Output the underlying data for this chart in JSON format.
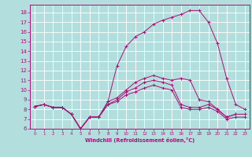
{
  "xlabel": "Windchill (Refroidissement éolien,°C)",
  "xlim": [
    -0.5,
    23.5
  ],
  "ylim": [
    6,
    18.8
  ],
  "yticks": [
    6,
    7,
    8,
    9,
    10,
    11,
    12,
    13,
    14,
    15,
    16,
    17,
    18
  ],
  "xticks": [
    0,
    1,
    2,
    3,
    4,
    5,
    6,
    7,
    8,
    9,
    10,
    11,
    12,
    13,
    14,
    15,
    16,
    17,
    18,
    19,
    20,
    21,
    22,
    23
  ],
  "bg_color": "#b2dede",
  "grid_color": "#ffffff",
  "line_color": "#aa1177",
  "series": [
    [
      8.3,
      8.5,
      8.2,
      8.2,
      7.5,
      6.0,
      7.2,
      7.2,
      8.8,
      12.5,
      14.5,
      15.5,
      16.0,
      16.8,
      17.2,
      17.5,
      17.8,
      18.2,
      18.2,
      17.0,
      14.8,
      11.2,
      8.5,
      8.0
    ],
    [
      8.3,
      8.5,
      8.2,
      8.2,
      7.5,
      6.0,
      7.2,
      7.2,
      8.8,
      9.2,
      10.0,
      10.8,
      11.2,
      11.5,
      11.2,
      11.0,
      11.2,
      11.0,
      9.0,
      8.8,
      8.0,
      7.2,
      7.5,
      7.5
    ],
    [
      8.3,
      8.5,
      8.2,
      8.2,
      7.5,
      6.0,
      7.2,
      7.2,
      8.5,
      9.0,
      9.8,
      10.2,
      10.8,
      11.0,
      10.8,
      10.5,
      8.5,
      8.2,
      8.2,
      8.5,
      8.0,
      7.2,
      7.5,
      7.5
    ],
    [
      8.3,
      8.5,
      8.2,
      8.2,
      7.5,
      6.0,
      7.2,
      7.2,
      8.5,
      8.8,
      9.5,
      9.8,
      10.2,
      10.5,
      10.2,
      10.0,
      8.2,
      8.0,
      8.0,
      8.2,
      7.8,
      7.0,
      7.2,
      7.2
    ]
  ]
}
